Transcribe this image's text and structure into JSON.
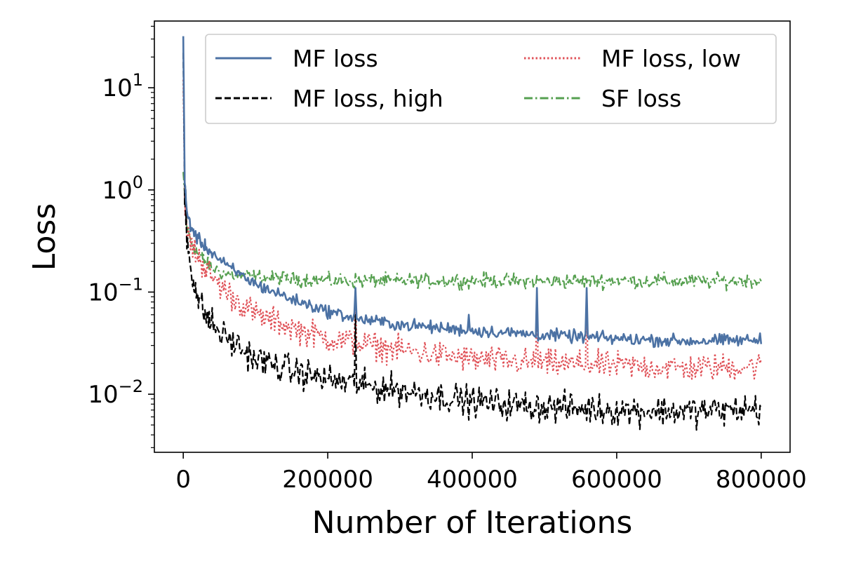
{
  "chart_data": {
    "type": "line",
    "title": "",
    "xlabel": "Number of Iterations",
    "ylabel": "Loss",
    "yscale": "log",
    "xlim": [
      -40000,
      840000
    ],
    "ylim": [
      0.0027,
      45
    ],
    "xticks": [
      {
        "value": 0,
        "label": "0"
      },
      {
        "value": 200000,
        "label": "200000"
      },
      {
        "value": 400000,
        "label": "400000"
      },
      {
        "value": 600000,
        "label": "600000"
      },
      {
        "value": 800000,
        "label": "800000"
      }
    ],
    "yticks": [
      {
        "value": 0.01,
        "base": "10",
        "exp": "−2"
      },
      {
        "value": 0.1,
        "base": "10",
        "exp": "−1"
      },
      {
        "value": 1,
        "base": "10",
        "exp": "0"
      },
      {
        "value": 10,
        "base": "10",
        "exp": "1"
      }
    ],
    "legend_position": "top",
    "series": [
      {
        "name": "MF loss",
        "color": "#4c72a4",
        "style": "solid",
        "noise": 0.09,
        "x": [
          0,
          2000,
          5000,
          10000,
          20000,
          40000,
          60000,
          100000,
          150000,
          200000,
          240000,
          300000,
          400000,
          500000,
          600000,
          700000,
          800000
        ],
        "y": [
          32,
          1.2,
          0.6,
          0.45,
          0.33,
          0.24,
          0.18,
          0.12,
          0.085,
          0.065,
          0.055,
          0.048,
          0.042,
          0.038,
          0.035,
          0.033,
          0.034
        ],
        "spikes": [
          [
            238000,
            0.11
          ],
          [
            395000,
            0.06
          ],
          [
            490000,
            0.11
          ],
          [
            558000,
            0.11
          ]
        ]
      },
      {
        "name": "MF loss, high",
        "color": "#000000",
        "style": "dashed",
        "noise": 0.22,
        "x": [
          0,
          2000,
          5000,
          10000,
          20000,
          30000,
          50000,
          100000,
          150000,
          200000,
          250000,
          300000,
          400000,
          500000,
          600000,
          700000,
          800000
        ],
        "y": [
          22,
          0.9,
          0.35,
          0.18,
          0.09,
          0.06,
          0.04,
          0.022,
          0.017,
          0.014,
          0.012,
          0.011,
          0.0085,
          0.0075,
          0.007,
          0.0068,
          0.0072
        ],
        "spikes": [
          [
            238000,
            0.06
          ]
        ]
      },
      {
        "name": "MF loss, low",
        "color": "#e05258",
        "style": "dotted",
        "noise": 0.2,
        "x": [
          0,
          2000,
          5000,
          10000,
          20000,
          40000,
          60000,
          100000,
          150000,
          200000,
          300000,
          400000,
          500000,
          600000,
          700000,
          800000
        ],
        "y": [
          12,
          0.9,
          0.4,
          0.3,
          0.22,
          0.14,
          0.1,
          0.06,
          0.045,
          0.035,
          0.027,
          0.022,
          0.02,
          0.019,
          0.018,
          0.019
        ],
        "spikes": [
          [
            238000,
            0.1
          ],
          [
            490000,
            0.1
          ],
          [
            558000,
            0.1
          ]
        ]
      },
      {
        "name": "SF loss",
        "color": "#56a050",
        "style": "dashdot",
        "noise": 0.11,
        "x": [
          0,
          2000,
          5000,
          10000,
          20000,
          40000,
          60000,
          100000,
          200000,
          300000,
          400000,
          500000,
          600000,
          700000,
          800000
        ],
        "y": [
          1.5,
          0.9,
          0.45,
          0.32,
          0.24,
          0.17,
          0.15,
          0.14,
          0.13,
          0.128,
          0.13,
          0.127,
          0.13,
          0.127,
          0.13
        ],
        "spikes": []
      }
    ],
    "legend_order": [
      0,
      2,
      1,
      3
    ]
  }
}
